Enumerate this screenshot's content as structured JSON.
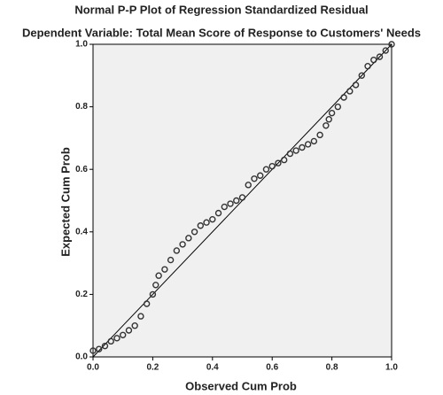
{
  "chart_data": {
    "type": "scatter",
    "title": "Normal P-P Plot of Regression Standardized Residual",
    "subtitle": "Dependent Variable: Total Mean Score of Response to Customers' Needs",
    "x_label": "Observed Cum Prob",
    "y_label": "Expected Cum Prob",
    "color": "#333333",
    "x": [
      0.0,
      0.02,
      0.04,
      0.06,
      0.08,
      0.1,
      0.12,
      0.14,
      0.16,
      0.18,
      0.2,
      0.21,
      0.22,
      0.24,
      0.26,
      0.28,
      0.3,
      0.32,
      0.34,
      0.36,
      0.38,
      0.4,
      0.42,
      0.44,
      0.46,
      0.48,
      0.5,
      0.52,
      0.54,
      0.56,
      0.58,
      0.6,
      0.62,
      0.64,
      0.66,
      0.68,
      0.7,
      0.72,
      0.74,
      0.76,
      0.78,
      0.79,
      0.8,
      0.82,
      0.84,
      0.86,
      0.88,
      0.9,
      0.92,
      0.94,
      0.96,
      0.98,
      1.0
    ],
    "values": [
      0.02,
      0.025,
      0.035,
      0.05,
      0.06,
      0.07,
      0.085,
      0.1,
      0.13,
      0.17,
      0.2,
      0.23,
      0.26,
      0.28,
      0.31,
      0.34,
      0.36,
      0.38,
      0.4,
      0.42,
      0.43,
      0.44,
      0.46,
      0.48,
      0.49,
      0.5,
      0.51,
      0.55,
      0.57,
      0.58,
      0.6,
      0.61,
      0.62,
      0.63,
      0.65,
      0.66,
      0.67,
      0.68,
      0.69,
      0.71,
      0.74,
      0.76,
      0.78,
      0.8,
      0.83,
      0.85,
      0.87,
      0.9,
      0.93,
      0.95,
      0.96,
      0.98,
      1.0
    ],
    "xlim": [
      0,
      1
    ],
    "ylim": [
      0,
      1
    ],
    "xticks": [
      {
        "value": 0,
        "label": "0.0"
      },
      {
        "value": 0.2,
        "label": "0.2"
      },
      {
        "value": 0.4,
        "label": "0.4"
      },
      {
        "value": 0.6,
        "label": "0.6"
      },
      {
        "value": 0.8,
        "label": "0.8"
      },
      {
        "value": 1,
        "label": "1.0"
      }
    ],
    "yticks": [
      {
        "value": 0,
        "label": "0.0"
      },
      {
        "value": 0.2,
        "label": "0.2"
      },
      {
        "value": 0.4,
        "label": "0.4"
      },
      {
        "value": 0.6,
        "label": "0.6"
      },
      {
        "value": 0.8,
        "label": "0.8"
      },
      {
        "value": 1,
        "label": "1.0"
      }
    ]
  }
}
